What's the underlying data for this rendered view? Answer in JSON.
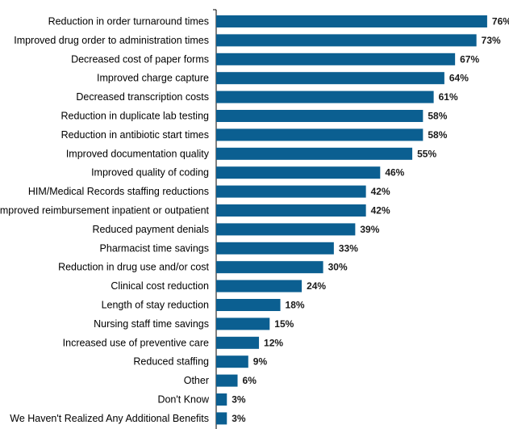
{
  "chart_data": {
    "type": "bar",
    "orientation": "horizontal",
    "title": "",
    "xlabel": "",
    "ylabel": "",
    "xlim": [
      0,
      80
    ],
    "grid": false,
    "legend": "none",
    "value_suffix": "%",
    "bar_color": "#0b5f91",
    "categories": [
      "Reduction in order turnaround times",
      "Improved drug order to administration times",
      "Decreased cost of paper forms",
      "Improved charge capture",
      "Decreased transcription costs",
      "Reduction in duplicate lab testing",
      "Reduction in antibiotic start times",
      "Improved documentation quality",
      "Improved quality of coding",
      "HIM/Medical Records staffing reductions",
      "Improved reimbursement inpatient or outpatient",
      "Reduced payment denials",
      "Pharmacist time savings",
      "Reduction in drug use and/or cost",
      "Clinical cost reduction",
      "Length of stay reduction",
      "Nursing staff time savings",
      "Increased use of preventive care",
      "Reduced staffing",
      "Other",
      "Don't Know",
      "We Haven't Realized Any Additional Benefits"
    ],
    "values": [
      76,
      73,
      67,
      64,
      61,
      58,
      58,
      55,
      46,
      42,
      42,
      39,
      33,
      30,
      24,
      18,
      15,
      12,
      9,
      6,
      3,
      3
    ]
  }
}
